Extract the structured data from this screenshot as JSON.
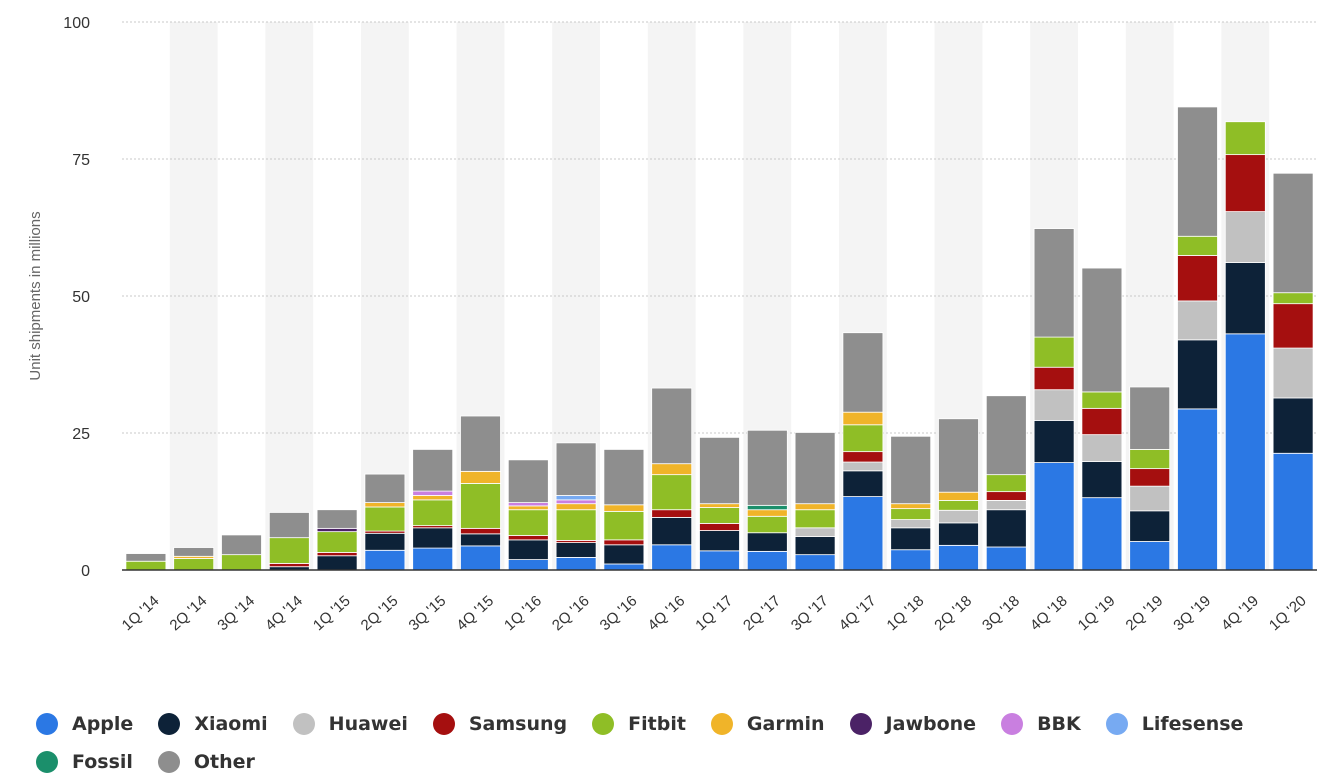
{
  "chart_data": {
    "type": "bar",
    "stacked": true,
    "ylabel": "Unit shipments in millions",
    "xlabel": "",
    "ylim": [
      0,
      100
    ],
    "yticks": [
      0,
      25,
      50,
      75,
      100
    ],
    "grid": true,
    "legend_position": "bottom",
    "categories": [
      "1Q '14",
      "2Q '14",
      "3Q '14",
      "4Q '14",
      "1Q '15",
      "2Q '15",
      "3Q '15",
      "4Q '15",
      "1Q '16",
      "2Q '16",
      "3Q '16",
      "4Q '16",
      "1Q '17",
      "2Q '17",
      "3Q '17",
      "4Q '17",
      "1Q '18",
      "2Q '18",
      "3Q '18",
      "4Q '18",
      "1Q '19",
      "2Q '19",
      "3Q '19",
      "4Q '19",
      "1Q '20"
    ],
    "series": [
      {
        "name": "Apple",
        "color": "#2b78e4",
        "values": [
          0,
          0,
          0,
          0,
          0,
          3.6,
          4.0,
          4.4,
          1.9,
          2.3,
          1.1,
          4.6,
          3.5,
          3.4,
          2.8,
          13.4,
          3.7,
          4.5,
          4.2,
          19.6,
          13.2,
          5.2,
          29.4,
          43.1,
          21.3
        ]
      },
      {
        "name": "Xiaomi",
        "color": "#0d2238",
        "values": [
          0,
          0,
          0,
          0.6,
          2.6,
          3.1,
          3.7,
          2.2,
          3.6,
          2.7,
          3.5,
          5.0,
          3.7,
          3.4,
          3.3,
          4.7,
          4.0,
          4.1,
          6.8,
          7.7,
          6.6,
          5.6,
          12.6,
          13.0,
          10.1
        ]
      },
      {
        "name": "Huawei",
        "color": "#c1c1c1",
        "values": [
          0,
          0,
          0,
          0,
          0,
          0,
          0,
          0,
          0,
          0,
          0,
          0,
          0,
          0,
          1.6,
          1.6,
          1.5,
          2.3,
          1.7,
          5.6,
          4.9,
          4.5,
          7.1,
          9.3,
          9.1
        ]
      },
      {
        "name": "Samsung",
        "color": "#a50f0f",
        "values": [
          0,
          0,
          0,
          0.6,
          0.6,
          0.4,
          0.4,
          1.0,
          0.8,
          0.4,
          0.9,
          1.4,
          1.3,
          0,
          0,
          1.9,
          0,
          0,
          1.6,
          4.1,
          4.8,
          3.2,
          8.3,
          10.4,
          8.1
        ]
      },
      {
        "name": "Fitbit",
        "color": "#8fbe26",
        "values": [
          1.6,
          2.1,
          2.8,
          4.7,
          3.8,
          4.4,
          4.7,
          8.2,
          4.7,
          5.6,
          5.2,
          6.4,
          2.9,
          3.0,
          3.3,
          4.9,
          2.0,
          1.8,
          3.1,
          5.5,
          3.0,
          3.5,
          3.5,
          6.0,
          2.0
        ]
      },
      {
        "name": "Garmin",
        "color": "#f0b429",
        "values": [
          0,
          0.4,
          0,
          0,
          0,
          0.8,
          0.8,
          2.2,
          0.7,
          1.1,
          1.2,
          2.0,
          0.7,
          1.2,
          1.1,
          2.3,
          0.9,
          1.5,
          0,
          0,
          0,
          0,
          0,
          0,
          0
        ]
      },
      {
        "name": "Jawbone",
        "color": "#4b2266",
        "values": [
          0,
          0,
          0,
          0,
          0.6,
          0,
          0,
          0,
          0,
          0,
          0,
          0,
          0,
          0,
          0,
          0,
          0,
          0,
          0,
          0,
          0,
          0,
          0,
          0,
          0
        ]
      },
      {
        "name": "BBK",
        "color": "#c97fe0",
        "values": [
          0,
          0,
          0,
          0,
          0,
          0,
          0.8,
          0,
          0.6,
          0.7,
          0,
          0,
          0,
          0,
          0,
          0,
          0,
          0,
          0,
          0,
          0,
          0,
          0,
          0,
          0
        ]
      },
      {
        "name": "Lifesense",
        "color": "#77aaf2",
        "values": [
          0,
          0,
          0,
          0,
          0,
          0,
          0,
          0,
          0,
          0.8,
          0,
          0,
          0,
          0,
          0,
          0,
          0,
          0,
          0,
          0,
          0,
          0,
          0,
          0,
          0
        ]
      },
      {
        "name": "Fossil",
        "color": "#1b8f6b",
        "values": [
          0,
          0,
          0,
          0,
          0,
          0,
          0,
          0,
          0,
          0,
          0,
          0,
          0,
          0.8,
          0,
          0,
          0,
          0,
          0,
          0,
          0,
          0,
          0,
          0,
          0
        ]
      },
      {
        "name": "Other",
        "color": "#8e8e8e",
        "values": [
          1.4,
          1.6,
          3.6,
          4.6,
          3.4,
          5.2,
          7.6,
          10.1,
          7.8,
          9.6,
          10.1,
          13.8,
          12.1,
          13.7,
          13.0,
          14.5,
          12.3,
          13.4,
          14.4,
          19.8,
          22.6,
          11.4,
          23.6,
          0,
          21.8
        ]
      }
    ]
  }
}
